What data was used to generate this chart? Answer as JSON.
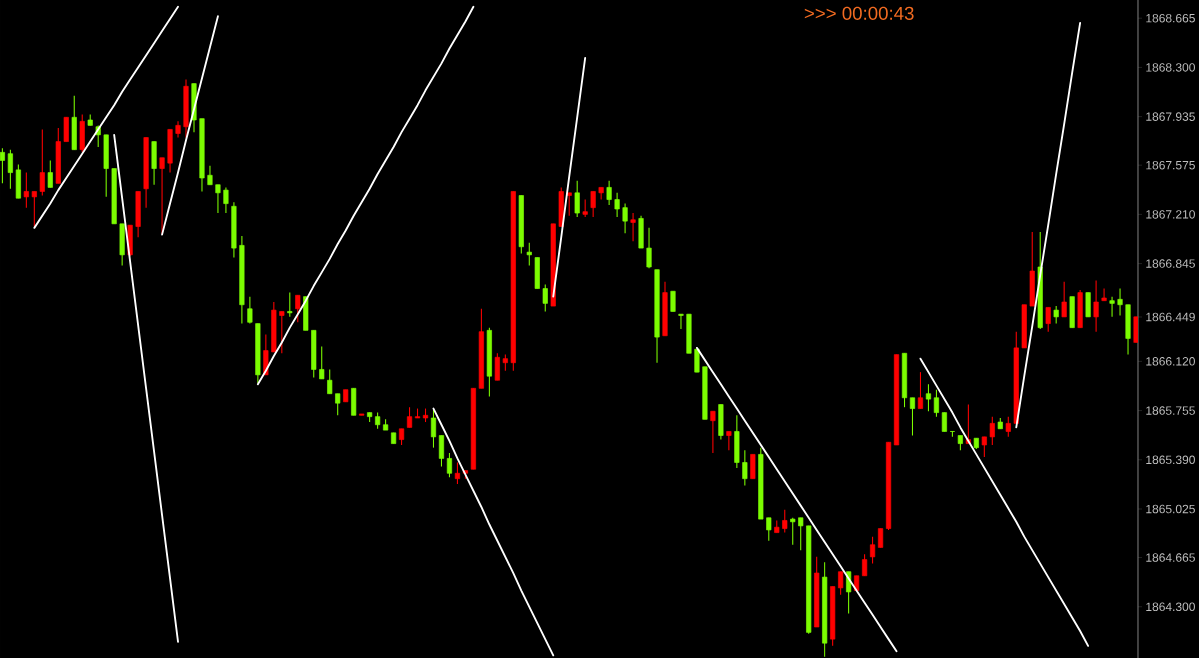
{
  "chart_data": {
    "type": "candlestick",
    "annotations": [
      ">>> 00:00:43"
    ],
    "tick_labels": "y",
    "ylim": [
      1863.92,
      1868.8
    ],
    "yticks": [
      {
        "value": 1868.665,
        "label": "1868.665"
      },
      {
        "value": 1868.3,
        "label": "1868.300"
      },
      {
        "value": 1867.935,
        "label": "1867.935"
      },
      {
        "value": 1867.575,
        "label": "1867.575"
      },
      {
        "value": 1867.21,
        "label": "1867.210"
      },
      {
        "value": 1866.845,
        "label": "1866.845"
      },
      {
        "value": 1866.449,
        "label": "1866.449"
      },
      {
        "value": 1866.12,
        "label": "1866.120"
      },
      {
        "value": 1865.755,
        "label": "1865.755"
      },
      {
        "value": 1865.39,
        "label": "1865.390"
      },
      {
        "value": 1865.025,
        "label": "1865.025"
      },
      {
        "value": 1864.665,
        "label": "1864.665"
      },
      {
        "value": 1864.3,
        "label": "1864.300"
      }
    ],
    "categories": [
      null,
      null,
      null,
      null,
      null,
      null,
      null,
      null,
      null,
      null,
      null,
      null,
      null,
      null,
      null,
      null,
      null,
      null,
      null,
      null,
      null,
      null,
      null,
      null,
      null,
      null,
      null,
      null,
      null,
      null,
      null,
      null,
      null,
      null,
      null,
      null,
      null,
      null,
      null,
      null,
      null,
      null,
      null,
      null,
      null,
      null,
      null,
      null,
      null,
      null,
      null,
      null,
      null,
      null,
      null,
      null,
      null,
      null,
      null,
      null,
      null,
      null,
      null,
      null,
      null,
      null,
      null,
      null,
      null,
      null,
      null,
      null,
      null,
      null,
      null,
      null,
      null,
      null,
      null,
      null,
      null,
      null,
      null,
      null,
      null,
      null,
      null,
      null,
      null,
      null,
      null,
      null,
      null,
      null,
      null,
      null,
      null,
      null,
      null,
      null,
      null,
      null,
      null,
      null,
      null,
      null,
      null,
      null,
      null,
      null,
      null,
      null,
      null,
      null,
      null,
      null,
      null,
      null,
      null,
      null,
      null,
      null,
      null,
      null,
      null,
      null,
      null,
      null,
      null,
      null,
      null,
      null,
      null,
      null,
      null,
      null,
      null,
      null,
      null,
      null,
      null,
      null,
      null
    ],
    "ohlc": [
      [
        1867.67,
        1867.7,
        1867.44,
        1867.61
      ],
      [
        1867.66,
        1867.69,
        1867.4,
        1867.52
      ],
      [
        1867.54,
        1867.58,
        1867.33,
        1867.33
      ],
      [
        1867.34,
        1867.52,
        1867.26,
        1867.38
      ],
      [
        1867.34,
        1867.38,
        1867.12,
        1867.38
      ],
      [
        1867.38,
        1867.84,
        1867.35,
        1867.52
      ],
      [
        1867.52,
        1867.61,
        1867.41,
        1867.41
      ],
      [
        1867.44,
        1867.85,
        1867.44,
        1867.75
      ],
      [
        1867.75,
        1867.93,
        1867.75,
        1867.93
      ],
      [
        1867.93,
        1868.09,
        1867.69,
        1867.69
      ],
      [
        1867.69,
        1867.95,
        1867.67,
        1867.9
      ],
      [
        1867.91,
        1867.95,
        1867.87,
        1867.87
      ],
      [
        1867.86,
        1867.87,
        1867.71,
        1867.8
      ],
      [
        1867.8,
        1867.8,
        1867.34,
        1867.55
      ],
      [
        1867.55,
        1867.55,
        1867.14,
        1867.14
      ],
      [
        1867.14,
        1867.14,
        1866.83,
        1866.91
      ],
      [
        1866.91,
        1867.13,
        1866.9,
        1867.13
      ],
      [
        1867.12,
        1867.38,
        1867.04,
        1867.38
      ],
      [
        1867.4,
        1867.78,
        1867.26,
        1867.78
      ],
      [
        1867.75,
        1867.75,
        1867.43,
        1867.55
      ],
      [
        1867.55,
        1867.63,
        1867.06,
        1867.63
      ],
      [
        1867.59,
        1867.84,
        1867.52,
        1867.84
      ],
      [
        1867.81,
        1867.9,
        1867.78,
        1867.87
      ],
      [
        1867.86,
        1868.21,
        1867.78,
        1868.16
      ],
      [
        1868.18,
        1868.18,
        1867.82,
        1867.91
      ],
      [
        1867.92,
        1867.92,
        1867.38,
        1867.48
      ],
      [
        1867.5,
        1867.57,
        1867.43,
        1867.43
      ],
      [
        1867.43,
        1867.43,
        1867.22,
        1867.37
      ],
      [
        1867.39,
        1867.41,
        1867.22,
        1867.29
      ],
      [
        1867.27,
        1867.3,
        1866.89,
        1866.96
      ],
      [
        1866.98,
        1867.05,
        1866.4,
        1866.54
      ],
      [
        1866.51,
        1866.6,
        1866.4,
        1866.41
      ],
      [
        1866.4,
        1866.4,
        1865.96,
        1866.02
      ],
      [
        1866.02,
        1866.32,
        1866.02,
        1866.2
      ],
      [
        1866.19,
        1866.56,
        1866.19,
        1866.5
      ],
      [
        1866.46,
        1866.49,
        1866.18,
        1866.49
      ],
      [
        1866.49,
        1866.63,
        1866.45,
        1866.48
      ],
      [
        1866.51,
        1866.61,
        1866.41,
        1866.61
      ],
      [
        1866.6,
        1866.6,
        1866.35,
        1866.35
      ],
      [
        1866.35,
        1866.35,
        1866.0,
        1866.06
      ],
      [
        1866.06,
        1866.23,
        1865.99,
        1865.99
      ],
      [
        1865.98,
        1866.06,
        1865.88,
        1865.88
      ],
      [
        1865.88,
        1865.88,
        1865.72,
        1865.81
      ],
      [
        1865.82,
        1865.91,
        1865.82,
        1865.91
      ],
      [
        1865.92,
        1865.92,
        1865.72,
        1865.72
      ],
      [
        1865.72,
        1865.73,
        1865.72,
        1865.73
      ],
      [
        1865.74,
        1865.74,
        1865.67,
        1865.71
      ],
      [
        1865.71,
        1865.74,
        1865.62,
        1865.65
      ],
      [
        1865.65,
        1865.69,
        1865.61,
        1865.61
      ],
      [
        1865.59,
        1865.59,
        1865.51,
        1865.51
      ],
      [
        1865.54,
        1865.62,
        1865.5,
        1865.62
      ],
      [
        1865.63,
        1865.78,
        1865.63,
        1865.71
      ],
      [
        1865.7,
        1865.77,
        1865.7,
        1865.71
      ],
      [
        1865.7,
        1865.77,
        1865.67,
        1865.72
      ],
      [
        1865.7,
        1865.77,
        1865.48,
        1865.56
      ],
      [
        1865.57,
        1865.57,
        1865.34,
        1865.4
      ],
      [
        1865.4,
        1865.44,
        1865.26,
        1865.29
      ],
      [
        1865.25,
        1865.37,
        1865.21,
        1865.29
      ],
      [
        1865.29,
        1865.31,
        1865.25,
        1865.31
      ],
      [
        1865.32,
        1865.92,
        1865.32,
        1865.92
      ],
      [
        1865.92,
        1866.51,
        1865.92,
        1866.34
      ],
      [
        1866.35,
        1866.37,
        1865.86,
        1866.01
      ],
      [
        1865.98,
        1866.18,
        1865.98,
        1866.15
      ],
      [
        1866.11,
        1866.17,
        1866.05,
        1866.14
      ],
      [
        1866.11,
        1867.38,
        1866.05,
        1867.38
      ],
      [
        1867.35,
        1867.35,
        1866.92,
        1866.97
      ],
      [
        1866.93,
        1867.0,
        1866.83,
        1866.91
      ],
      [
        1866.89,
        1866.89,
        1866.66,
        1866.66
      ],
      [
        1866.66,
        1866.69,
        1866.49,
        1866.55
      ],
      [
        1866.53,
        1867.14,
        1866.53,
        1867.14
      ],
      [
        1867.12,
        1867.41,
        1867.12,
        1867.38
      ],
      [
        1867.35,
        1867.37,
        1867.2,
        1867.37
      ],
      [
        1867.37,
        1867.46,
        1867.19,
        1867.22
      ],
      [
        1867.21,
        1867.32,
        1867.19,
        1867.23
      ],
      [
        1867.26,
        1867.38,
        1867.19,
        1867.38
      ],
      [
        1867.37,
        1867.41,
        1867.32,
        1867.41
      ],
      [
        1867.41,
        1867.46,
        1867.28,
        1867.32
      ],
      [
        1867.32,
        1867.37,
        1867.19,
        1867.25
      ],
      [
        1867.26,
        1867.29,
        1867.07,
        1867.16
      ],
      [
        1867.15,
        1867.22,
        1867.01,
        1867.17
      ],
      [
        1867.18,
        1867.2,
        1866.96,
        1866.96
      ],
      [
        1866.96,
        1867.11,
        1866.81,
        1866.82
      ],
      [
        1866.8,
        1866.8,
        1866.11,
        1866.3
      ],
      [
        1866.31,
        1866.71,
        1866.31,
        1866.63
      ],
      [
        1866.64,
        1866.64,
        1866.49,
        1866.49
      ],
      [
        1866.47,
        1866.47,
        1866.36,
        1866.46
      ],
      [
        1866.47,
        1866.47,
        1866.18,
        1866.18
      ],
      [
        1866.21,
        1866.21,
        1866.04,
        1866.04
      ],
      [
        1866.08,
        1866.08,
        1865.69,
        1865.69
      ],
      [
        1865.68,
        1865.75,
        1865.44,
        1865.75
      ],
      [
        1865.8,
        1865.8,
        1865.54,
        1865.57
      ],
      [
        1865.57,
        1865.6,
        1865.46,
        1865.6
      ],
      [
        1865.6,
        1865.72,
        1865.33,
        1865.37
      ],
      [
        1865.37,
        1865.46,
        1865.2,
        1865.25
      ],
      [
        1865.25,
        1865.43,
        1865.25,
        1865.43
      ],
      [
        1865.43,
        1865.48,
        1864.95,
        1864.95
      ],
      [
        1864.96,
        1864.96,
        1864.79,
        1864.87
      ],
      [
        1864.85,
        1864.94,
        1864.85,
        1864.89
      ],
      [
        1864.88,
        1865.02,
        1864.85,
        1864.94
      ],
      [
        1864.95,
        1864.96,
        1864.76,
        1864.93
      ],
      [
        1864.96,
        1864.96,
        1864.72,
        1864.9
      ],
      [
        1864.9,
        1864.9,
        1864.1,
        1864.11
      ],
      [
        1864.15,
        1864.67,
        1864.15,
        1864.55
      ],
      [
        1864.52,
        1864.63,
        1863.93,
        1864.03
      ],
      [
        1864.06,
        1864.45,
        1864.01,
        1864.45
      ],
      [
        1864.44,
        1864.56,
        1864.39,
        1864.56
      ],
      [
        1864.56,
        1864.56,
        1864.25,
        1864.41
      ],
      [
        1864.42,
        1864.53,
        1864.42,
        1864.53
      ],
      [
        1864.53,
        1864.69,
        1864.53,
        1864.65
      ],
      [
        1864.67,
        1864.82,
        1864.62,
        1864.76
      ],
      [
        1864.74,
        1864.88,
        1864.74,
        1864.88
      ],
      [
        1864.88,
        1865.52,
        1864.87,
        1865.52
      ],
      [
        1865.5,
        1866.17,
        1865.5,
        1866.17
      ],
      [
        1866.18,
        1866.18,
        1865.78,
        1865.85
      ],
      [
        1865.85,
        1865.85,
        1865.57,
        1865.77
      ],
      [
        1865.77,
        1866.04,
        1865.77,
        1865.85
      ],
      [
        1865.88,
        1865.95,
        1865.75,
        1865.84
      ],
      [
        1865.85,
        1865.91,
        1865.71,
        1865.74
      ],
      [
        1865.74,
        1865.74,
        1865.6,
        1865.6
      ],
      [
        1865.6,
        1865.6,
        1865.56,
        1865.6
      ],
      [
        1865.57,
        1865.57,
        1865.46,
        1865.51
      ],
      [
        1865.51,
        1865.8,
        1865.51,
        1865.54
      ],
      [
        1865.55,
        1865.55,
        1865.47,
        1865.48
      ],
      [
        1865.5,
        1865.56,
        1865.41,
        1865.56
      ],
      [
        1865.56,
        1865.71,
        1865.5,
        1865.66
      ],
      [
        1865.67,
        1865.7,
        1865.62,
        1865.62
      ],
      [
        1865.6,
        1865.71,
        1865.56,
        1865.66
      ],
      [
        1865.66,
        1866.34,
        1865.66,
        1866.22
      ],
      [
        1866.22,
        1866.54,
        1866.22,
        1866.54
      ],
      [
        1866.53,
        1867.08,
        1866.53,
        1866.79
      ],
      [
        1866.82,
        1867.08,
        1866.36,
        1866.37
      ],
      [
        1866.4,
        1866.52,
        1866.34,
        1866.52
      ],
      [
        1866.5,
        1866.53,
        1866.4,
        1866.45
      ],
      [
        1866.45,
        1866.71,
        1866.45,
        1866.56
      ],
      [
        1866.6,
        1866.6,
        1866.37,
        1866.37
      ],
      [
        1866.37,
        1866.65,
        1866.37,
        1866.63
      ],
      [
        1866.63,
        1866.63,
        1866.45,
        1866.45
      ],
      [
        1866.45,
        1866.72,
        1866.34,
        1866.56
      ],
      [
        1866.57,
        1866.66,
        1866.57,
        1866.59
      ],
      [
        1866.57,
        1866.6,
        1866.45,
        1866.55
      ],
      [
        1866.58,
        1866.66,
        1866.46,
        1866.54
      ],
      [
        1866.54,
        1866.54,
        1866.17,
        1866.29
      ],
      [
        1866.26,
        1866.45,
        1866.26,
        1866.45
      ]
    ],
    "colors": [
      "#7cfc00",
      "#7cfc00",
      "#7cfc00",
      "#ff0000",
      "#ff0000",
      "#ff0000",
      "#7cfc00",
      "#ff0000",
      "#ff0000",
      "#7cfc00",
      "#ff0000",
      "#7cfc00",
      "#7cfc00",
      "#7cfc00",
      "#7cfc00",
      "#7cfc00",
      "#ff0000",
      "#ff0000",
      "#ff0000",
      "#7cfc00",
      "#ff0000",
      "#ff0000",
      "#ff0000",
      "#ff0000",
      "#7cfc00",
      "#7cfc00",
      "#7cfc00",
      "#7cfc00",
      "#7cfc00",
      "#7cfc00",
      "#7cfc00",
      "#7cfc00",
      "#7cfc00",
      "#ff0000",
      "#ff0000",
      "#ff0000",
      "#7cfc00",
      "#ff0000",
      "#7cfc00",
      "#7cfc00",
      "#7cfc00",
      "#7cfc00",
      "#7cfc00",
      "#ff0000",
      "#7cfc00",
      "#ff0000",
      "#7cfc00",
      "#7cfc00",
      "#7cfc00",
      "#7cfc00",
      "#ff0000",
      "#ff0000",
      "#ff0000",
      "#ff0000",
      "#7cfc00",
      "#7cfc00",
      "#7cfc00",
      "#ff0000",
      "#ff0000",
      "#ff0000",
      "#ff0000",
      "#7cfc00",
      "#ff0000",
      "#ff0000",
      "#ff0000",
      "#7cfc00",
      "#7cfc00",
      "#7cfc00",
      "#7cfc00",
      "#ff0000",
      "#ff0000",
      "#ff0000",
      "#7cfc00",
      "#ff0000",
      "#ff0000",
      "#ff0000",
      "#7cfc00",
      "#7cfc00",
      "#7cfc00",
      "#ff0000",
      "#7cfc00",
      "#7cfc00",
      "#7cfc00",
      "#ff0000",
      "#7cfc00",
      "#7cfc00",
      "#7cfc00",
      "#7cfc00",
      "#7cfc00",
      "#ff0000",
      "#7cfc00",
      "#ff0000",
      "#7cfc00",
      "#7cfc00",
      "#ff0000",
      "#7cfc00",
      "#7cfc00",
      "#ff0000",
      "#ff0000",
      "#7cfc00",
      "#7cfc00",
      "#7cfc00",
      "#ff0000",
      "#7cfc00",
      "#ff0000",
      "#ff0000",
      "#7cfc00",
      "#ff0000",
      "#ff0000",
      "#ff0000",
      "#ff0000",
      "#ff0000",
      "#ff0000",
      "#7cfc00",
      "#7cfc00",
      "#ff0000",
      "#7cfc00",
      "#7cfc00",
      "#7cfc00",
      "#7cfc00",
      "#7cfc00",
      "#ff0000",
      "#7cfc00",
      "#ff0000",
      "#ff0000",
      "#7cfc00",
      "#ff0000",
      "#ff0000",
      "#ff0000",
      "#ff0000",
      "#7cfc00",
      "#ff0000",
      "#7cfc00",
      "#ff0000",
      "#7cfc00",
      "#ff0000",
      "#7cfc00",
      "#ff0000",
      "#ff0000",
      "#7cfc00",
      "#7cfc00",
      "#7cfc00",
      "#ff0000"
    ],
    "series": [
      {
        "type": "line",
        "color": "#ffffff",
        "values": [
          null,
          null,
          null,
          null,
          1867.11,
          1867.2,
          1867.29,
          1867.39,
          1867.48,
          1867.57,
          1867.66,
          1867.75,
          1867.84,
          1867.93,
          1868.02,
          1868.12,
          1868.21,
          1868.3,
          1868.39,
          1868.48,
          1868.57,
          1868.66,
          1868.75,
          null,
          null,
          null,
          null,
          null,
          null,
          null,
          null,
          null,
          null,
          null,
          null,
          null,
          null,
          null,
          null,
          null,
          null,
          null,
          null,
          null,
          null,
          null,
          null,
          null,
          null,
          null,
          null,
          null,
          null,
          null,
          null,
          null,
          null,
          null,
          null,
          null,
          null,
          null,
          null,
          null,
          null,
          null,
          null,
          null,
          null,
          null,
          null,
          null,
          null,
          null,
          null,
          null,
          null,
          null,
          null,
          null,
          null,
          null,
          null,
          null,
          null,
          null,
          null,
          null,
          null,
          null,
          null,
          null,
          null,
          null,
          null,
          null,
          null,
          null,
          null,
          null,
          null,
          null,
          null,
          null,
          null,
          null,
          null,
          null,
          null,
          null,
          null,
          null,
          null,
          null,
          null,
          null,
          null,
          null,
          null,
          null,
          null,
          null,
          null,
          null,
          null,
          null,
          null,
          null,
          null,
          null,
          null,
          null,
          null,
          null,
          null,
          null,
          null,
          null,
          null,
          null,
          null,
          null,
          null
        ]
      },
      {
        "type": "line",
        "color": "#ffffff",
        "values": [
          null,
          null,
          null,
          null,
          null,
          null,
          null,
          null,
          null,
          null,
          null,
          null,
          null,
          null,
          null,
          null,
          null,
          null,
          null,
          null,
          1867.06,
          1867.29,
          1867.52,
          1867.76,
          1867.99,
          1868.22,
          1868.45,
          1868.68,
          null,
          null,
          null,
          null,
          null,
          null,
          null,
          null,
          null,
          null,
          null,
          null,
          null,
          null,
          null,
          null,
          null,
          null,
          null,
          null,
          null,
          null,
          null,
          null,
          null,
          null,
          null,
          null,
          null,
          null,
          null,
          null,
          null,
          null,
          null,
          null,
          null,
          null,
          null,
          null,
          null,
          null,
          null,
          null,
          null,
          null,
          null,
          null,
          null,
          null,
          null,
          null,
          null,
          null,
          null,
          null,
          null,
          null,
          null,
          null,
          null,
          null,
          null,
          null,
          null,
          null,
          null,
          null,
          null,
          null,
          null,
          null,
          null,
          null,
          null,
          null,
          null,
          null,
          null,
          null,
          null,
          null,
          null,
          null,
          null,
          null,
          null,
          null,
          null,
          null,
          null,
          null,
          null,
          null,
          null,
          null,
          null,
          null,
          null,
          null,
          null,
          null,
          null,
          null,
          null,
          null,
          null,
          null,
          null,
          null,
          null,
          null,
          null,
          null,
          null
        ]
      },
      {
        "type": "line",
        "color": "#ffffff",
        "values": [
          null,
          null,
          null,
          null,
          null,
          null,
          null,
          null,
          null,
          null,
          null,
          null,
          null,
          null,
          1867.8,
          1867.33,
          1866.86,
          1866.39,
          1865.92,
          1865.45,
          1864.98,
          1864.51,
          1864.04,
          null,
          null,
          null,
          null,
          null,
          null,
          null,
          null,
          null,
          null,
          null,
          null,
          null,
          null,
          null,
          null,
          null,
          null,
          null,
          null,
          null,
          null,
          null,
          null,
          null,
          null,
          null,
          null,
          null,
          null,
          null,
          null,
          null,
          null,
          null,
          null,
          null,
          null,
          null,
          null,
          null,
          null,
          null,
          null,
          null,
          null,
          null,
          null,
          null,
          null,
          null,
          null,
          null,
          null,
          null,
          null,
          null,
          null,
          null,
          null,
          null,
          null,
          null,
          null,
          null,
          null,
          null,
          null,
          null,
          null,
          null,
          null,
          null,
          null,
          null,
          null,
          null,
          null,
          null,
          null,
          null,
          null,
          null,
          null,
          null,
          null,
          null,
          null,
          null,
          null,
          null,
          null,
          null,
          null,
          null,
          null,
          null,
          null,
          null,
          null,
          null,
          null,
          null,
          null,
          null,
          null,
          null,
          null,
          null,
          null,
          null,
          null,
          null,
          null,
          null,
          null,
          null,
          null,
          null,
          null
        ]
      },
      {
        "type": "line",
        "color": "#ffffff",
        "values": [
          null,
          null,
          null,
          null,
          null,
          null,
          null,
          null,
          null,
          null,
          null,
          null,
          null,
          null,
          null,
          null,
          null,
          null,
          null,
          null,
          null,
          null,
          null,
          null,
          null,
          null,
          null,
          null,
          null,
          null,
          null,
          null,
          1865.95,
          1866.05,
          1866.16,
          1866.26,
          1866.37,
          1866.47,
          1866.57,
          1866.68,
          1866.78,
          1866.88,
          1866.99,
          1867.09,
          1867.2,
          1867.3,
          1867.4,
          1867.51,
          1867.61,
          1867.71,
          1867.82,
          1867.92,
          1868.02,
          1868.13,
          1868.23,
          1868.33,
          1868.44,
          1868.54,
          1868.64,
          1868.75,
          null,
          null,
          null,
          null,
          null,
          null,
          null,
          null,
          null,
          null,
          null,
          null,
          null,
          null,
          null,
          null,
          null,
          null,
          null,
          null,
          null,
          null,
          null,
          null,
          null,
          null,
          null,
          null,
          null,
          null,
          null,
          null,
          null,
          null,
          null,
          null,
          null,
          null,
          null,
          null,
          null,
          null,
          null,
          null,
          null,
          null,
          null,
          null,
          null,
          null,
          null,
          null,
          null,
          null,
          null,
          null,
          null,
          null,
          null,
          null,
          null,
          null,
          null,
          null,
          null,
          null,
          null,
          null,
          null,
          null,
          null,
          null,
          null,
          null,
          null,
          null,
          null,
          null,
          null,
          null,
          null,
          null,
          null
        ]
      },
      {
        "type": "line",
        "color": "#ffffff",
        "values": [
          null,
          null,
          null,
          null,
          null,
          null,
          null,
          null,
          null,
          null,
          null,
          null,
          null,
          null,
          null,
          null,
          null,
          null,
          null,
          null,
          null,
          null,
          null,
          null,
          null,
          null,
          null,
          null,
          null,
          null,
          null,
          null,
          null,
          null,
          null,
          null,
          null,
          null,
          null,
          null,
          null,
          null,
          null,
          null,
          null,
          null,
          null,
          null,
          null,
          null,
          null,
          null,
          null,
          null,
          1865.77,
          1865.65,
          1865.53,
          1865.4,
          1865.28,
          1865.16,
          1865.04,
          1864.91,
          1864.79,
          1864.67,
          1864.55,
          1864.42,
          1864.3,
          1864.18,
          1864.06,
          1863.94,
          null,
          null,
          null,
          null,
          null,
          null,
          null,
          null,
          null,
          null,
          null,
          null,
          null,
          null,
          null,
          null,
          null,
          null,
          null,
          null,
          null,
          null,
          null,
          null,
          null,
          null,
          null,
          null,
          null,
          null,
          null,
          null,
          null,
          null,
          null,
          null,
          null,
          null,
          null,
          null,
          null,
          null,
          null,
          null,
          null,
          null,
          null,
          null,
          null,
          null,
          null,
          null,
          null,
          null,
          null,
          null,
          null,
          null,
          null,
          null,
          null,
          null,
          null,
          null,
          null,
          null,
          null,
          null,
          null,
          null,
          null,
          null,
          null
        ]
      },
      {
        "type": "line",
        "color": "#ffffff",
        "values": [
          null,
          null,
          null,
          null,
          null,
          null,
          null,
          null,
          null,
          null,
          null,
          null,
          null,
          null,
          null,
          null,
          null,
          null,
          null,
          null,
          null,
          null,
          null,
          null,
          null,
          null,
          null,
          null,
          null,
          null,
          null,
          null,
          null,
          null,
          null,
          null,
          null,
          null,
          null,
          null,
          null,
          null,
          null,
          null,
          null,
          null,
          null,
          null,
          null,
          null,
          null,
          null,
          null,
          null,
          null,
          null,
          null,
          null,
          null,
          null,
          null,
          null,
          null,
          null,
          null,
          null,
          null,
          null,
          null,
          1866.6,
          1867.04,
          1867.49,
          1867.93,
          1868.37,
          null,
          null,
          null,
          null,
          null,
          null,
          null,
          null,
          null,
          null,
          null,
          null,
          null,
          null,
          null,
          null,
          null,
          null,
          null,
          null,
          null,
          null,
          null,
          null,
          null,
          null,
          null,
          null,
          null,
          null,
          null,
          null,
          null,
          null,
          null,
          null,
          null,
          null,
          null,
          null,
          null,
          null,
          null,
          null,
          null,
          null,
          null,
          null,
          null,
          null,
          null,
          null,
          null,
          null,
          null,
          null,
          null,
          null,
          null,
          null,
          null,
          null,
          null,
          null,
          null,
          null,
          null,
          null,
          null
        ]
      },
      {
        "type": "line",
        "color": "#ffffff",
        "values": [
          null,
          null,
          null,
          null,
          null,
          null,
          null,
          null,
          null,
          null,
          null,
          null,
          null,
          null,
          null,
          null,
          null,
          null,
          null,
          null,
          null,
          null,
          null,
          null,
          null,
          null,
          null,
          null,
          null,
          null,
          null,
          null,
          null,
          null,
          null,
          null,
          null,
          null,
          null,
          null,
          null,
          null,
          null,
          null,
          null,
          null,
          null,
          null,
          null,
          null,
          null,
          null,
          null,
          null,
          null,
          null,
          null,
          null,
          null,
          null,
          null,
          null,
          null,
          null,
          null,
          null,
          null,
          null,
          null,
          null,
          null,
          null,
          null,
          null,
          null,
          null,
          null,
          null,
          null,
          null,
          null,
          null,
          null,
          null,
          null,
          null,
          null,
          1866.22,
          1866.13,
          1866.04,
          1865.95,
          1865.86,
          1865.77,
          1865.68,
          1865.59,
          1865.5,
          1865.41,
          1865.32,
          1865.23,
          1865.14,
          1865.05,
          1864.96,
          1864.87,
          1864.78,
          1864.69,
          1864.6,
          1864.51,
          1864.42,
          1864.33,
          1864.24,
          1864.15,
          1864.06,
          1863.97,
          null,
          null,
          null,
          null,
          null,
          null,
          null,
          null,
          null,
          null,
          null,
          null,
          null,
          null,
          null,
          null,
          null,
          null,
          null,
          null,
          null,
          null,
          null,
          null,
          null,
          null,
          null,
          null,
          null,
          null
        ]
      },
      {
        "type": "line",
        "color": "#ffffff",
        "values": [
          null,
          null,
          null,
          null,
          null,
          null,
          null,
          null,
          null,
          null,
          null,
          null,
          null,
          null,
          null,
          null,
          null,
          null,
          null,
          null,
          null,
          null,
          null,
          null,
          null,
          null,
          null,
          null,
          null,
          null,
          null,
          null,
          null,
          null,
          null,
          null,
          null,
          null,
          null,
          null,
          null,
          null,
          null,
          null,
          null,
          null,
          null,
          null,
          null,
          null,
          null,
          null,
          null,
          null,
          null,
          null,
          null,
          null,
          null,
          null,
          null,
          null,
          null,
          null,
          null,
          null,
          null,
          null,
          null,
          null,
          null,
          null,
          null,
          null,
          null,
          null,
          null,
          null,
          null,
          null,
          null,
          null,
          null,
          null,
          null,
          null,
          null,
          null,
          null,
          null,
          null,
          null,
          null,
          null,
          null,
          null,
          null,
          null,
          null,
          null,
          null,
          null,
          null,
          null,
          null,
          null,
          null,
          null,
          null,
          null,
          null,
          null,
          null,
          null,
          null,
          1866.14,
          1866.04,
          1865.94,
          1865.84,
          1865.74,
          1865.63,
          1865.53,
          1865.43,
          1865.33,
          1865.23,
          1865.13,
          1865.03,
          1864.93,
          1864.82,
          1864.72,
          1864.62,
          1864.52,
          1864.42,
          1864.32,
          1864.22,
          1864.12,
          1864.01,
          null,
          null,
          null,
          null,
          null,
          null
        ]
      },
      {
        "type": "line",
        "color": "#ffffff",
        "values": [
          null,
          null,
          null,
          null,
          null,
          null,
          null,
          null,
          null,
          null,
          null,
          null,
          null,
          null,
          null,
          null,
          null,
          null,
          null,
          null,
          null,
          null,
          null,
          null,
          null,
          null,
          null,
          null,
          null,
          null,
          null,
          null,
          null,
          null,
          null,
          null,
          null,
          null,
          null,
          null,
          null,
          null,
          null,
          null,
          null,
          null,
          null,
          null,
          null,
          null,
          null,
          null,
          null,
          null,
          null,
          null,
          null,
          null,
          null,
          null,
          null,
          null,
          null,
          null,
          null,
          null,
          null,
          null,
          null,
          null,
          null,
          null,
          null,
          null,
          null,
          null,
          null,
          null,
          null,
          null,
          null,
          null,
          null,
          null,
          null,
          null,
          null,
          null,
          null,
          null,
          null,
          null,
          null,
          null,
          null,
          null,
          null,
          null,
          null,
          null,
          null,
          null,
          null,
          null,
          null,
          null,
          null,
          null,
          null,
          null,
          null,
          null,
          null,
          null,
          null,
          null,
          null,
          null,
          null,
          null,
          null,
          null,
          null,
          null,
          null,
          null,
          null,
          1865.63,
          1866.01,
          1866.38,
          1866.76,
          1867.13,
          1867.51,
          1867.88,
          1868.26,
          1868.63,
          null,
          null,
          null,
          null,
          null,
          null,
          null
        ]
      }
    ]
  }
}
